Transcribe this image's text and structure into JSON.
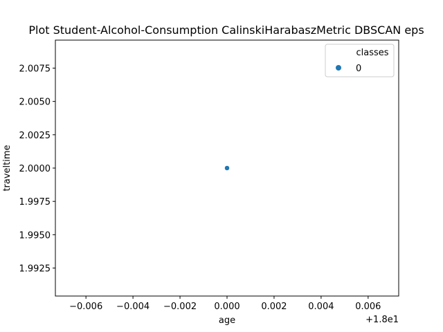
{
  "chart_data": {
    "type": "scatter",
    "title": "Plot Student-Alcohol-Consumption CalinskiHarabaszMetric DBSCAN eps",
    "xlabel": "age",
    "ylabel": "traveltime",
    "x_offset_label": "+1.8e1",
    "xlim": [
      -0.0073,
      0.0073
    ],
    "ylim": [
      1.9904,
      2.0096
    ],
    "x_ticks": [
      -0.006,
      -0.004,
      -0.002,
      0.0,
      0.002,
      0.004,
      0.006
    ],
    "x_tick_labels": [
      "−0.006",
      "−0.004",
      "−0.002",
      "0.000",
      "0.002",
      "0.004",
      "0.006"
    ],
    "y_ticks": [
      1.9925,
      1.995,
      1.9975,
      2.0,
      2.0025,
      2.005,
      2.0075
    ],
    "y_tick_labels": [
      "1.9925",
      "1.9950",
      "1.9975",
      "2.0000",
      "2.0025",
      "2.0050",
      "2.0075"
    ],
    "series": [
      {
        "name": "0",
        "color": "#1f77b4",
        "points": [
          {
            "x": 0.0,
            "y": 2.0
          }
        ]
      }
    ],
    "legend": {
      "title": "classes",
      "placement": "top-right"
    },
    "grid": false
  }
}
